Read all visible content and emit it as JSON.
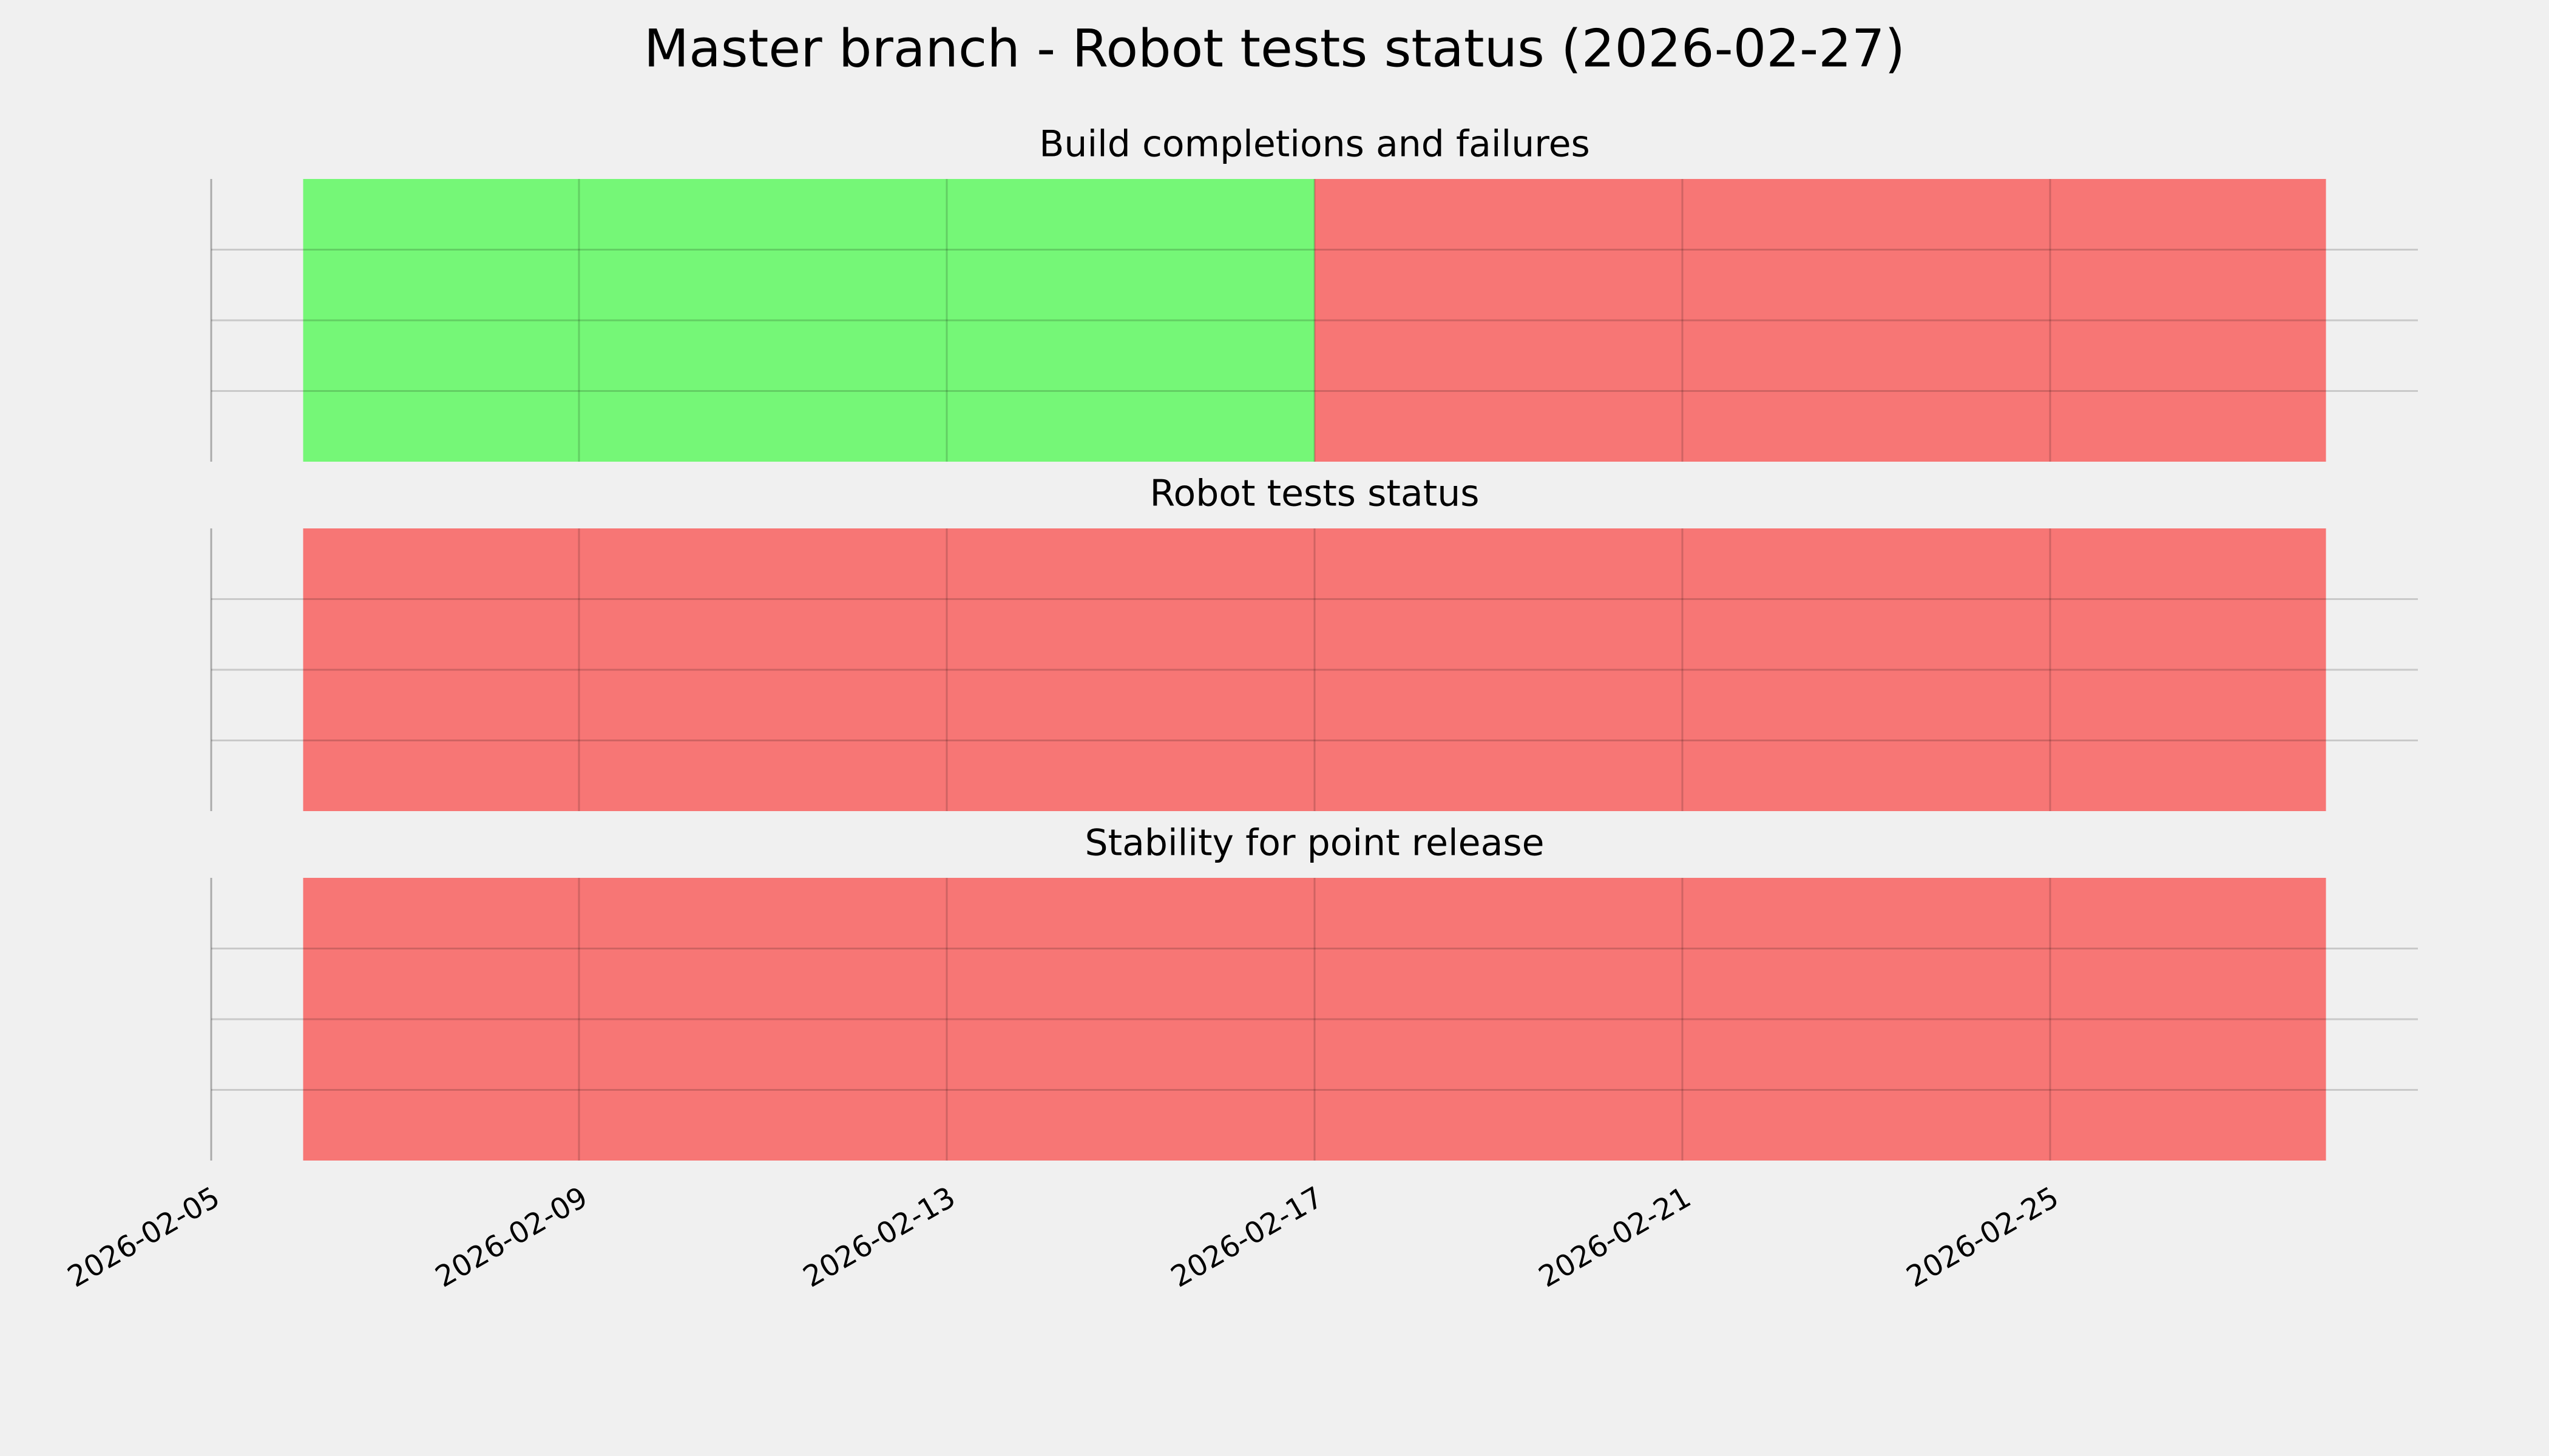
{
  "chart_data": {
    "type": "timeline",
    "title": "Master branch - Robot tests status (2026-02-27)",
    "xlim": [
      "2026-02-05",
      "2026-03-01"
    ],
    "xticks": [
      "2026-02-05",
      "2026-02-09",
      "2026-02-13",
      "2026-02-17",
      "2026-02-21",
      "2026-02-25"
    ],
    "ylim": [
      0,
      1
    ],
    "yticks": [
      0.25,
      0.5,
      0.75
    ],
    "grid": true,
    "colors": {
      "pass": "#75f777",
      "fail": "#f77675"
    },
    "panels": [
      {
        "title": "Build completions and failures",
        "segments": [
          {
            "start": "2026-02-06",
            "end": "2026-02-17",
            "status": "pass"
          },
          {
            "start": "2026-02-17",
            "end": "2026-02-28",
            "status": "fail"
          }
        ]
      },
      {
        "title": "Robot tests status",
        "segments": [
          {
            "start": "2026-02-06",
            "end": "2026-02-28",
            "status": "fail"
          }
        ]
      },
      {
        "title": "Stability for point release",
        "segments": [
          {
            "start": "2026-02-06",
            "end": "2026-02-28",
            "status": "fail"
          }
        ]
      }
    ]
  }
}
